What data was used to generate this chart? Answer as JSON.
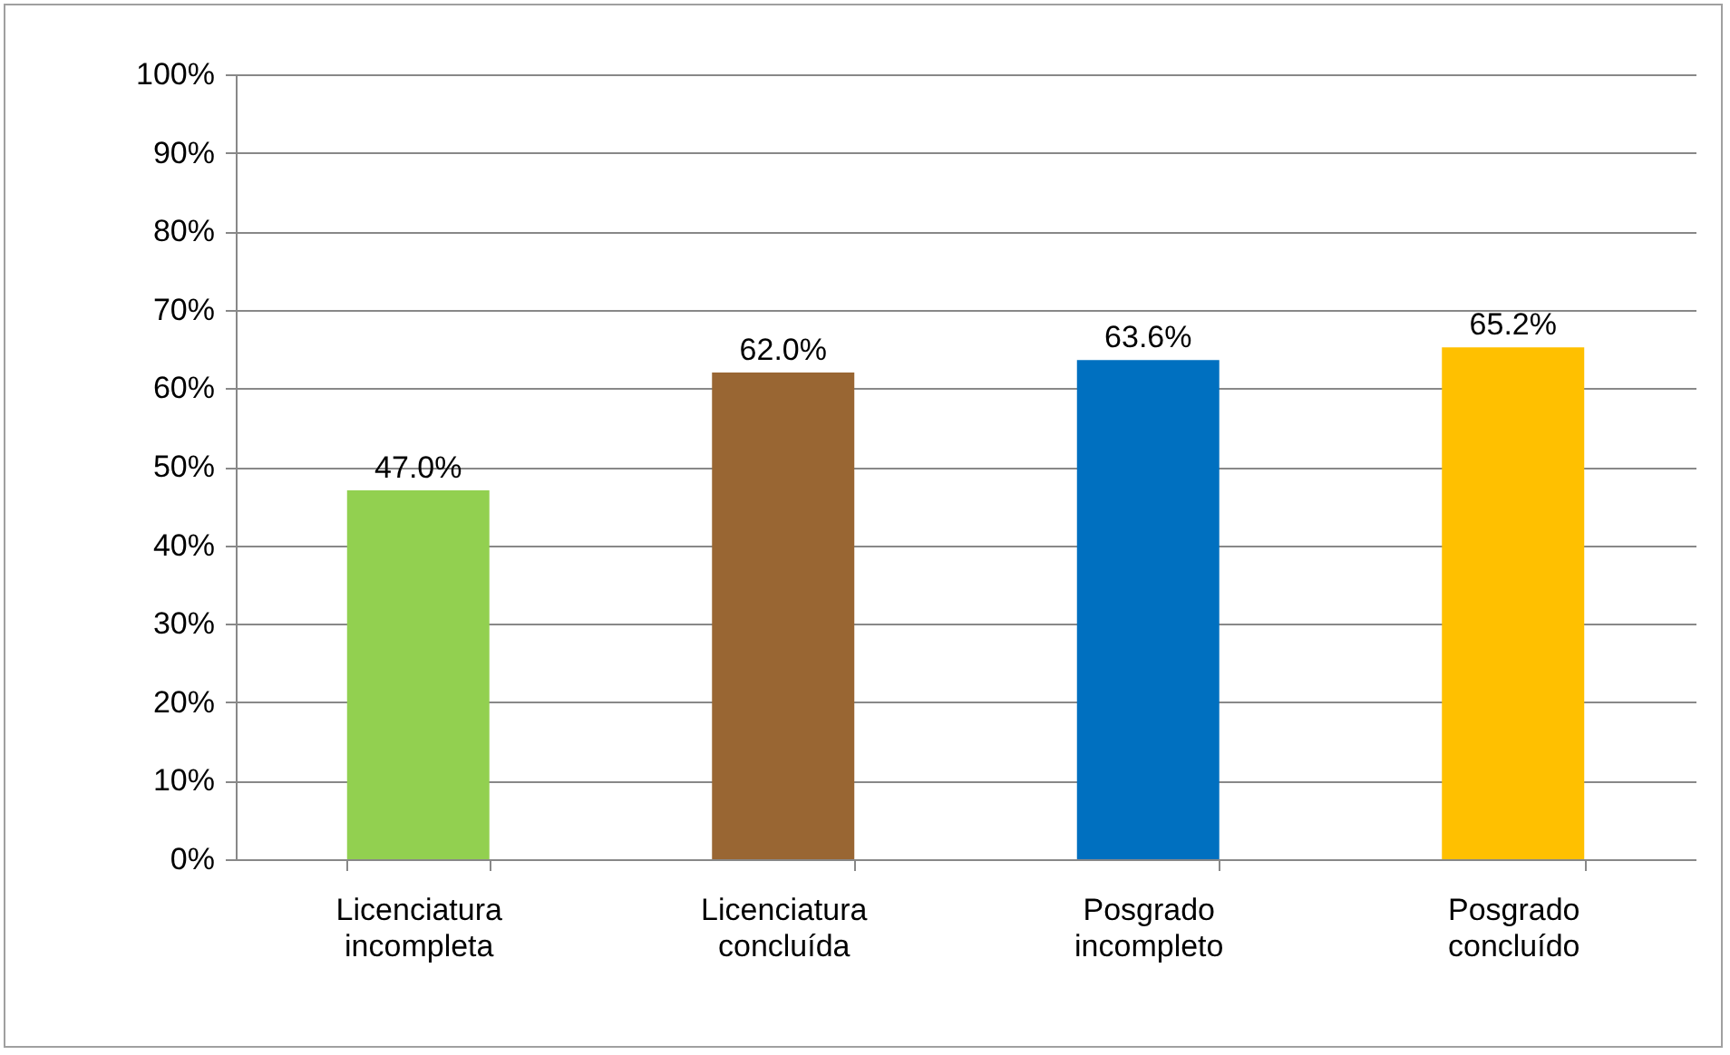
{
  "chart_data": {
    "type": "bar",
    "categories": [
      "Licenciatura incompleta",
      "Licenciatura concluída",
      "Posgrado incompleto",
      "Posgrado concluído"
    ],
    "values": [
      47.0,
      62.0,
      63.6,
      65.2
    ],
    "colors": [
      "#92d050",
      "#996633",
      "#0070c0",
      "#ffc000"
    ],
    "value_labels": [
      "47.0%",
      "62.0%",
      "63.6%",
      "65.2%"
    ],
    "ylim": [
      0,
      100
    ],
    "yticks": [
      {
        "value": 0,
        "label": "0%"
      },
      {
        "value": 10,
        "label": "10%"
      },
      {
        "value": 20,
        "label": "20%"
      },
      {
        "value": 30,
        "label": "30%"
      },
      {
        "value": 40,
        "label": "40%"
      },
      {
        "value": 50,
        "label": "50%"
      },
      {
        "value": 60,
        "label": "60%"
      },
      {
        "value": 70,
        "label": "70%"
      },
      {
        "value": 80,
        "label": "80%"
      },
      {
        "value": 90,
        "label": "90%"
      },
      {
        "value": 100,
        "label": "100%"
      }
    ],
    "grid": "y"
  }
}
